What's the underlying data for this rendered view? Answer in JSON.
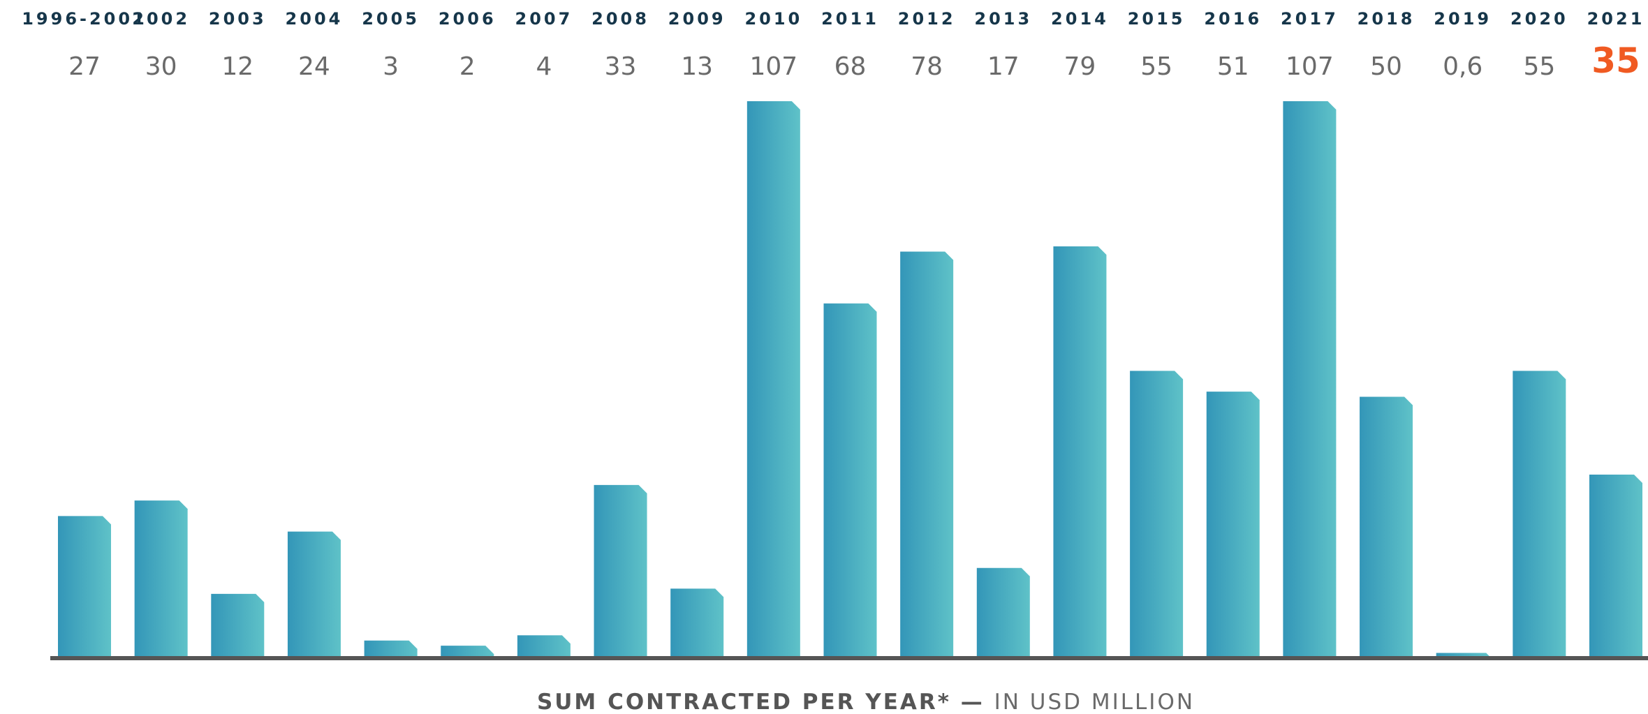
{
  "chart_data": {
    "type": "bar",
    "categories": [
      "1996-2001",
      "2002",
      "2003",
      "2004",
      "2005",
      "2006",
      "2007",
      "2008",
      "2009",
      "2010",
      "2011",
      "2012",
      "2013",
      "2014",
      "2015",
      "2016",
      "2017",
      "2018",
      "2019",
      "2020",
      "2021"
    ],
    "values": [
      27,
      30,
      12,
      24,
      3,
      2,
      4,
      33,
      13,
      107,
      68,
      78,
      17,
      79,
      55,
      51,
      107,
      50,
      0.6,
      55,
      35
    ],
    "value_labels": [
      "27",
      "30",
      "12",
      "24",
      "3",
      "2",
      "4",
      "33",
      "13",
      "107",
      "68",
      "78",
      "17",
      "79",
      "55",
      "51",
      "107",
      "50",
      "0,6",
      "55",
      "35"
    ],
    "highlight_index": 20,
    "caption": {
      "strong": "SUM CONTRACTED PER YEAR*",
      "dash": " — ",
      "light": "IN USD MILLION"
    },
    "ylim": [
      0,
      107
    ],
    "grid": false,
    "colors": {
      "bar_dark": "#3396b8",
      "bar_light": "#5fc2c8",
      "baseline": "#555555",
      "year_text": "#16364a",
      "value_text": "#6a6a6a",
      "highlight": "#f05a22"
    }
  }
}
